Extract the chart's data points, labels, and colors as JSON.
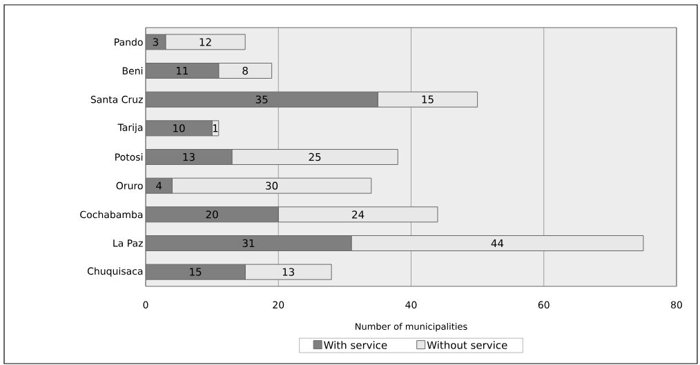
{
  "chart_data": {
    "type": "bar",
    "orientation": "horizontal",
    "stacked": true,
    "categories": [
      "Pando",
      "Beni",
      "Santa Cruz",
      "Tarija",
      "Potosi",
      "Oruro",
      "Cochabamba",
      "La Paz",
      "Chuquisaca"
    ],
    "series": [
      {
        "name": "With service",
        "color": "#7f7f7f",
        "values": [
          3,
          11,
          35,
          10,
          13,
          4,
          20,
          31,
          15
        ]
      },
      {
        "name": "Without service",
        "color": "#e8e8e8",
        "values": [
          12,
          8,
          15,
          1,
          25,
          30,
          24,
          44,
          13
        ]
      }
    ],
    "xlim": [
      0,
      80
    ],
    "xticks": [
      0,
      20,
      40,
      60,
      80
    ],
    "xlabel": "Number of municipalities",
    "grid": "x",
    "legend": "bottom",
    "data_labels": true
  }
}
